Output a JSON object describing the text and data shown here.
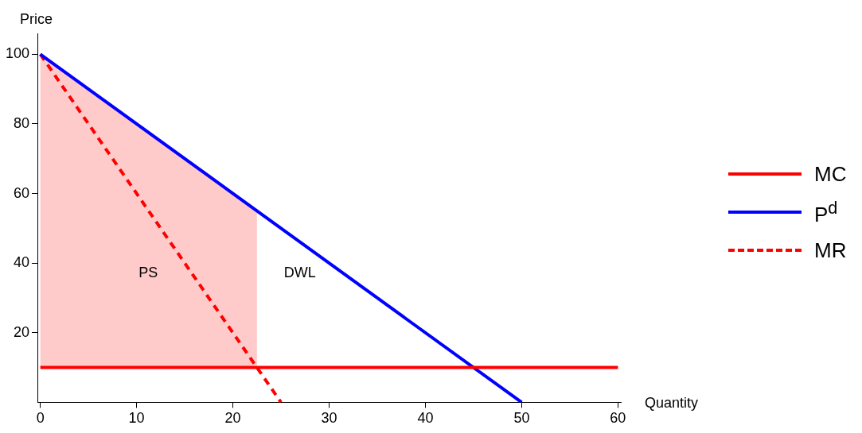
{
  "chart_data": {
    "type": "line",
    "xlabel": "Quantity",
    "ylabel": "Price",
    "xlim": [
      -0.3,
      60.3
    ],
    "ylim": [
      0,
      106
    ],
    "xticks": [
      0,
      10,
      20,
      30,
      40,
      50,
      60
    ],
    "yticks": [
      20,
      40,
      60,
      80,
      100
    ],
    "grid": false,
    "legend": "right",
    "marker": "none",
    "series": [
      {
        "type": "area",
        "color": "#ffcaca",
        "x": [
          0,
          22.5
        ],
        "values": [
          100,
          55
        ]
      },
      {
        "name": "MC",
        "color": "#ff0000",
        "x": [
          0,
          60
        ],
        "values": [
          10,
          10
        ],
        "line_style": "solid"
      },
      {
        "name": "P$^{d}$",
        "color": "#0000ff",
        "x": [
          0,
          50
        ],
        "values": [
          100,
          0
        ],
        "line_style": "solid"
      },
      {
        "name": "MR",
        "color": "#ff0000",
        "x": [
          0,
          25
        ],
        "values": [
          100,
          0
        ],
        "line_style": "dashed"
      }
    ],
    "annotations": [
      "PS",
      "DWL"
    ]
  }
}
